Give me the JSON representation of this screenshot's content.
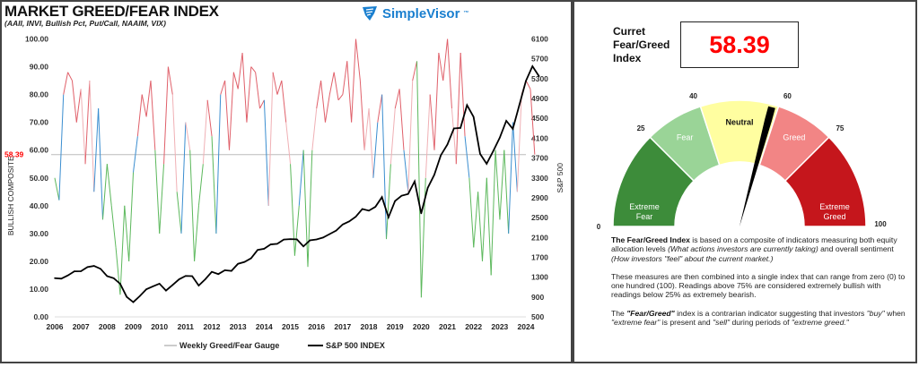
{
  "chart_data": {
    "type": "line",
    "title": "MARKET GREED/FEAR INDEX",
    "subtitle": "(AAII, INVI, Bullish Pct, Put/Call, NAAIM, VIX)",
    "brand": "SimpleVisor",
    "brand_tm": "™",
    "ylabel_left": "BULLISH COMPOSITE",
    "ylabel_right": "S&P 500",
    "ylim_left": [
      0,
      100
    ],
    "ylim_right": [
      500,
      6100
    ],
    "xlim": [
      2006,
      2024
    ],
    "yticks_left": [
      "0.00",
      "10.00",
      "20.00",
      "30.00",
      "40.00",
      "50.00",
      "60.00",
      "70.00",
      "80.00",
      "90.00",
      "100.00"
    ],
    "yticks_right": [
      "500",
      "900",
      "1300",
      "1700",
      "2100",
      "2500",
      "2900",
      "3300",
      "3700",
      "4100",
      "4500",
      "4900",
      "5300",
      "5700",
      "6100"
    ],
    "xticks": [
      "2006",
      "2007",
      "2008",
      "2009",
      "2010",
      "2011",
      "2012",
      "2013",
      "2014",
      "2015",
      "2016",
      "2017",
      "2018",
      "2019",
      "2020",
      "2021",
      "2022",
      "2023",
      "2024"
    ],
    "current_line": {
      "value": 58.39,
      "label": "58.39",
      "color": "#ff0000"
    },
    "legend": [
      {
        "name": "Weekly Greed/Fear Gauge",
        "color": "#bbbbbb"
      },
      {
        "name": "S&P 500 INDEX",
        "color": "#000000"
      }
    ],
    "legend_position": "bottom",
    "colors": {
      "greed": "#e0606a",
      "neutral": "#3b8ed0",
      "fear": "#5cb85c"
    },
    "series": [
      {
        "name": "Weekly Greed/Fear Gauge",
        "axis": "left",
        "x_start": 2006,
        "x_step_years": 0.1667,
        "values": [
          50,
          42,
          80,
          88,
          85,
          70,
          82,
          55,
          85,
          45,
          75,
          35,
          55,
          40,
          25,
          8,
          40,
          20,
          52,
          65,
          80,
          72,
          85,
          60,
          30,
          55,
          90,
          80,
          45,
          30,
          70,
          60,
          20,
          40,
          55,
          78,
          65,
          30,
          80,
          85,
          60,
          88,
          82,
          95,
          70,
          90,
          88,
          75,
          78,
          40,
          88,
          80,
          85,
          70,
          55,
          22,
          40,
          60,
          18,
          60,
          75,
          85,
          70,
          80,
          88,
          78,
          80,
          92,
          70,
          100,
          85,
          60,
          75,
          50,
          70,
          80,
          28,
          55,
          75,
          82,
          60,
          45,
          85,
          92,
          7,
          50,
          80,
          60,
          95,
          85,
          100,
          75,
          55,
          95,
          65,
          50,
          25,
          45,
          20,
          50,
          15,
          60,
          35,
          60,
          30,
          70,
          45,
          80,
          85,
          82,
          58.39
        ]
      },
      {
        "name": "S&P 500 INDEX",
        "axis": "right",
        "x_start": 2006,
        "x_step_years": 0.25,
        "values": [
          1280,
          1270,
          1335,
          1418,
          1420,
          1503,
          1527,
          1468,
          1322,
          1280,
          1166,
          903,
          797,
          919,
          1057,
          1115,
          1169,
          1030,
          1141,
          1257,
          1325,
          1320,
          1131,
          1257,
          1408,
          1362,
          1440,
          1426,
          1569,
          1606,
          1681,
          1848,
          1872,
          1960,
          1972,
          2058,
          2067,
          2063,
          1920,
          2043,
          2060,
          2098,
          2168,
          2238,
          2362,
          2423,
          2519,
          2673,
          2640,
          2718,
          2913,
          2506,
          2834,
          2941,
          2976,
          3230,
          2585,
          3100,
          3363,
          3756,
          3972,
          4297,
          4307,
          4766,
          4530,
          3785,
          3585,
          3839,
          4109,
          4450,
          4288,
          4769,
          5254,
          5550,
          5350
        ]
      }
    ]
  },
  "panel": {
    "current_label": "Curret Fear/Greed Index",
    "current_value": "58.39",
    "gauge": {
      "value": 58.39,
      "segments": [
        {
          "label": "Extreme Fear",
          "from": 0,
          "to": 25,
          "color": "#3d8c3a"
        },
        {
          "label": "Fear",
          "from": 25,
          "to": 40,
          "color": "#9ad497"
        },
        {
          "label": "Neutral",
          "from": 40,
          "to": 60,
          "color": "#fffea0"
        },
        {
          "label": "Greed",
          "from": 60,
          "to": 75,
          "color": "#f28585"
        },
        {
          "label": "Extreme Greed",
          "from": 75,
          "to": 100,
          "color": "#c5161c"
        }
      ],
      "ticks": [
        "0",
        "25",
        "40",
        "60",
        "75",
        "100"
      ]
    },
    "desc": {
      "p1_bold": "The Fear/Greed Index",
      "p1_a": " is based on a composite of indicators measuring both equity allocation levels ",
      "p1_i1": "(What actions investors are currently taking)",
      "p1_b": " and overall sentiment ",
      "p1_i2": "(How investors \"feel\" about the current market.)",
      "p2": "These measures are then combined into a single index that can range from zero (0) to one hundred (100). Readings above 75% are considered extremely bullish with readings below 25% as extremely bearish.",
      "p3_a": "The ",
      "p3_bold": "\"Fear/Greed\"",
      "p3_b": " index is a contrarian indicator suggesting that investors ",
      "p3_i1": "\"buy\"",
      "p3_c": " when ",
      "p3_i2": "\"extreme fear\"",
      "p3_d": " is present and ",
      "p3_i3": "\"sell\"",
      "p3_e": " during periods of ",
      "p3_i4": "\"extreme greed.\""
    }
  }
}
